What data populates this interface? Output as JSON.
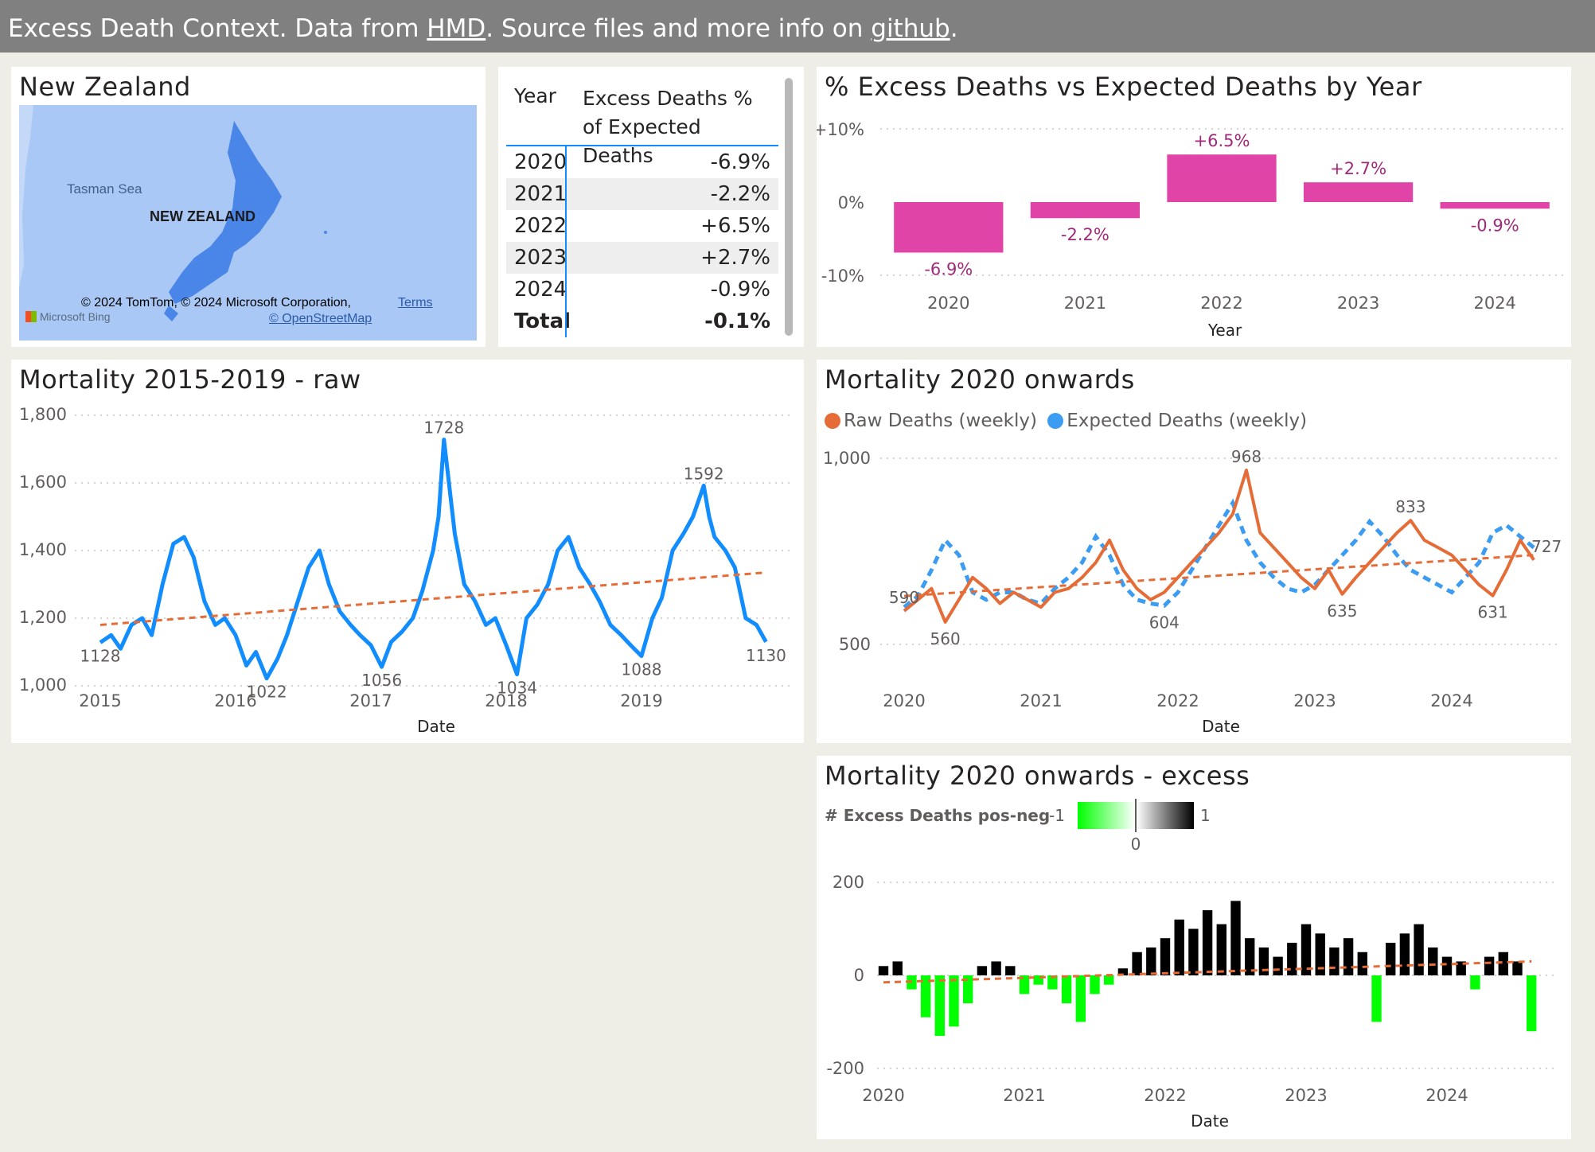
{
  "header": {
    "prefix": "Excess Death Context. Data from ",
    "hmd_link": "HMD",
    "middle": ". Source files and more info on ",
    "github_link": "github",
    "suffix": "."
  },
  "map_card": {
    "title": "New Zealand",
    "labels": {
      "sea": "Tasman Sea",
      "country": "NEW ZEALAND",
      "attribution": "© 2024 TomTom, © 2024 Microsoft Corporation,",
      "terms": "Terms",
      "osm": "© OpenStreetMap",
      "bing": "Microsoft Bing"
    },
    "colors": {
      "water": "#a9c8f5",
      "land": "#4a86e8"
    }
  },
  "table_card": {
    "col_year": "Year",
    "col_value": "Excess Deaths % of Expected Deaths",
    "rows": [
      {
        "year": "2020",
        "value": "-6.9%"
      },
      {
        "year": "2021",
        "value": "-2.2%"
      },
      {
        "year": "2022",
        "value": "+6.5%"
      },
      {
        "year": "2023",
        "value": "+2.7%"
      },
      {
        "year": "2024",
        "value": "-0.9%"
      }
    ],
    "total_label": "Total",
    "total_value": "-0.1%"
  },
  "bar_card": {
    "title": "% Excess Deaths vs Expected Deaths by Year",
    "y_ticks": [
      "+10%",
      "0%",
      "-10%"
    ],
    "x_label": "Year",
    "bar_labels": [
      "-6.9%",
      "-2.2%",
      "+6.5%",
      "+2.7%",
      "-0.9%"
    ]
  },
  "raw_card": {
    "title": "Mortality 2015-2019 - raw",
    "y_ticks": [
      "1,800",
      "1,600",
      "1,400",
      "1,200",
      "1,000"
    ],
    "x_ticks": [
      "2015",
      "2016",
      "2017",
      "2018",
      "2019"
    ],
    "x_label": "Date",
    "point_labels": [
      "1128",
      "1022",
      "1056",
      "1728",
      "1034",
      "1088",
      "1592",
      "1130"
    ]
  },
  "onwards_card": {
    "title": "Mortality 2020 onwards",
    "legend": [
      "Raw Deaths (weekly)",
      "Expected Deaths (weekly)"
    ],
    "y_ticks": [
      "1,000",
      "500"
    ],
    "x_ticks": [
      "2020",
      "2021",
      "2022",
      "2023",
      "2024"
    ],
    "x_label": "Date",
    "point_labels": [
      "590",
      "560",
      "604",
      "968",
      "635",
      "833",
      "631",
      "727"
    ]
  },
  "excess_card": {
    "title": "Mortality 2020 onwards - excess",
    "legend_label": "# Excess Deaths pos-neg",
    "gradient_min": "-1",
    "gradient_mid": "0",
    "gradient_max": "1",
    "y_ticks": [
      "200",
      "0",
      "-200"
    ],
    "x_ticks": [
      "2020",
      "2021",
      "2022",
      "2023",
      "2024"
    ],
    "x_label": "Date"
  },
  "chart_data": [
    {
      "type": "bar",
      "title": "% Excess Deaths vs Expected Deaths by Year",
      "categories": [
        "2020",
        "2021",
        "2022",
        "2023",
        "2024"
      ],
      "values": [
        -6.9,
        -2.2,
        6.5,
        2.7,
        -0.9
      ],
      "xlabel": "Year",
      "ylabel": "",
      "ylim": [
        -10,
        10
      ],
      "color": "#e044a7"
    },
    {
      "type": "line",
      "title": "Mortality 2015-2019 - raw",
      "xlabel": "Date",
      "ylabel": "",
      "ylim": [
        1000,
        1800
      ],
      "xlim": [
        2015,
        2020
      ],
      "grid": true,
      "series": [
        {
          "color": "#118dff",
          "x": [
            2015.0,
            2015.08,
            2015.15,
            2015.23,
            2015.31,
            2015.38,
            2015.46,
            2015.54,
            2015.62,
            2015.69,
            2015.77,
            2015.85,
            2015.92,
            2016.0,
            2016.08,
            2016.15,
            2016.23,
            2016.31,
            2016.38,
            2016.46,
            2016.54,
            2016.62,
            2016.69,
            2016.77,
            2016.85,
            2016.92,
            2017.0,
            2017.08,
            2017.15,
            2017.23,
            2017.31,
            2017.38,
            2017.46,
            2017.5,
            2017.54,
            2017.62,
            2017.69,
            2017.77,
            2017.85,
            2017.92,
            2018.0,
            2018.08,
            2018.15,
            2018.23,
            2018.31,
            2018.38,
            2018.46,
            2018.54,
            2018.62,
            2018.69,
            2018.77,
            2018.85,
            2018.92,
            2019.0,
            2019.08,
            2019.15,
            2019.23,
            2019.31,
            2019.38,
            2019.46,
            2019.5,
            2019.54,
            2019.62,
            2019.69,
            2019.77,
            2019.85,
            2019.92
          ],
          "values": [
            1128,
            1150,
            1110,
            1180,
            1200,
            1150,
            1300,
            1420,
            1440,
            1380,
            1250,
            1180,
            1200,
            1150,
            1060,
            1100,
            1022,
            1080,
            1150,
            1250,
            1350,
            1400,
            1300,
            1220,
            1180,
            1150,
            1120,
            1056,
            1130,
            1160,
            1200,
            1280,
            1400,
            1500,
            1728,
            1450,
            1300,
            1250,
            1180,
            1200,
            1120,
            1034,
            1200,
            1240,
            1300,
            1400,
            1440,
            1350,
            1300,
            1250,
            1180,
            1150,
            1120,
            1088,
            1200,
            1260,
            1400,
            1450,
            1500,
            1592,
            1500,
            1440,
            1400,
            1350,
            1200,
            1180,
            1130
          ]
        }
      ],
      "trend": {
        "color": "#e66c37",
        "values": [
          1180,
          1335
        ]
      },
      "point_labels": [
        {
          "x": 2015.0,
          "y": 1128
        },
        {
          "x": 2016.23,
          "y": 1022
        },
        {
          "x": 2017.08,
          "y": 1056
        },
        {
          "x": 2017.54,
          "y": 1728
        },
        {
          "x": 2018.08,
          "y": 1034
        },
        {
          "x": 2019.0,
          "y": 1088
        },
        {
          "x": 2019.46,
          "y": 1592
        },
        {
          "x": 2019.92,
          "y": 1130
        }
      ]
    },
    {
      "type": "line",
      "title": "Mortality 2020 onwards",
      "xlabel": "Date",
      "ylabel": "",
      "ylim": [
        500,
        1000
      ],
      "xlim": [
        2020,
        2025
      ],
      "grid": true,
      "series": [
        {
          "name": "Raw Deaths (weekly)",
          "color": "#e66c37",
          "x": [
            2020.0,
            2020.1,
            2020.2,
            2020.3,
            2020.4,
            2020.5,
            2020.6,
            2020.7,
            2020.8,
            2020.9,
            2021.0,
            2021.1,
            2021.2,
            2021.3,
            2021.4,
            2021.5,
            2021.6,
            2021.7,
            2021.8,
            2021.9,
            2022.0,
            2022.1,
            2022.2,
            2022.3,
            2022.4,
            2022.5,
            2022.6,
            2022.7,
            2022.8,
            2022.9,
            2023.0,
            2023.1,
            2023.2,
            2023.3,
            2023.4,
            2023.5,
            2023.6,
            2023.7,
            2023.8,
            2023.9,
            2024.0,
            2024.1,
            2024.2,
            2024.3,
            2024.4,
            2024.5,
            2024.6
          ],
          "values": [
            590,
            620,
            650,
            560,
            620,
            680,
            650,
            610,
            640,
            620,
            600,
            640,
            650,
            680,
            720,
            780,
            700,
            650,
            620,
            640,
            680,
            720,
            760,
            800,
            850,
            968,
            800,
            760,
            720,
            680,
            650,
            700,
            635,
            680,
            720,
            760,
            800,
            833,
            780,
            760,
            740,
            700,
            660,
            631,
            700,
            780,
            727
          ]
        },
        {
          "name": "Expected Deaths (weekly)",
          "color": "#3b9cf1",
          "x": [
            2020.0,
            2020.1,
            2020.2,
            2020.3,
            2020.4,
            2020.5,
            2020.6,
            2020.7,
            2020.8,
            2020.9,
            2021.0,
            2021.1,
            2021.2,
            2021.3,
            2021.4,
            2021.5,
            2021.6,
            2021.7,
            2021.8,
            2021.9,
            2022.0,
            2022.1,
            2022.2,
            2022.3,
            2022.4,
            2022.5,
            2022.6,
            2022.7,
            2022.8,
            2022.9,
            2023.0,
            2023.1,
            2023.2,
            2023.3,
            2023.4,
            2023.5,
            2023.6,
            2023.7,
            2023.8,
            2023.9,
            2024.0,
            2024.1,
            2024.2,
            2024.3,
            2024.4,
            2024.5,
            2024.6
          ],
          "values": [
            600,
            630,
            700,
            780,
            740,
            640,
            620,
            640,
            640,
            620,
            610,
            650,
            680,
            720,
            790,
            740,
            660,
            620,
            610,
            604,
            640,
            700,
            760,
            820,
            880,
            780,
            720,
            680,
            650,
            640,
            660,
            700,
            740,
            780,
            830,
            790,
            740,
            700,
            680,
            660,
            640,
            680,
            720,
            800,
            820,
            790,
            760
          ]
        }
      ],
      "trend": {
        "color": "#e66c37",
        "values": [
          630,
          740
        ]
      },
      "point_labels": [
        {
          "x": 2020.0,
          "y": 590
        },
        {
          "x": 2020.3,
          "y": 560
        },
        {
          "x": 2021.9,
          "y": 604
        },
        {
          "x": 2022.5,
          "y": 968
        },
        {
          "x": 2023.2,
          "y": 635
        },
        {
          "x": 2023.7,
          "y": 833
        },
        {
          "x": 2024.3,
          "y": 631
        },
        {
          "x": 2024.6,
          "y": 727
        }
      ]
    },
    {
      "type": "bar",
      "title": "Mortality 2020 onwards - excess",
      "xlabel": "Date",
      "ylabel": "",
      "ylim": [
        -200,
        200
      ],
      "xlim": [
        2020,
        2025
      ],
      "series": [
        {
          "name": "# Excess Deaths pos-neg",
          "x": [
            2020.0,
            2020.1,
            2020.2,
            2020.3,
            2020.4,
            2020.5,
            2020.6,
            2020.7,
            2020.8,
            2020.9,
            2021.0,
            2021.1,
            2021.2,
            2021.3,
            2021.4,
            2021.5,
            2021.6,
            2021.7,
            2021.8,
            2021.9,
            2022.0,
            2022.1,
            2022.2,
            2022.3,
            2022.4,
            2022.5,
            2022.6,
            2022.7,
            2022.8,
            2022.9,
            2023.0,
            2023.1,
            2023.2,
            2023.3,
            2023.4,
            2023.5,
            2023.6,
            2023.7,
            2023.8,
            2023.9,
            2024.0,
            2024.1,
            2024.2,
            2024.3,
            2024.4,
            2024.5,
            2024.6
          ],
          "values": [
            20,
            30,
            -30,
            -90,
            -130,
            -110,
            -60,
            20,
            30,
            20,
            -40,
            -20,
            -30,
            -60,
            -100,
            -40,
            -20,
            15,
            50,
            60,
            80,
            120,
            100,
            140,
            110,
            160,
            80,
            60,
            40,
            70,
            110,
            90,
            60,
            80,
            50,
            -100,
            70,
            90,
            110,
            60,
            40,
            30,
            -30,
            40,
            50,
            30,
            -120
          ]
        }
      ],
      "trend": {
        "color": "#e66c37",
        "values": [
          -15,
          30
        ]
      },
      "colors": {
        "positive": "#000000",
        "negative": "#00ff00"
      }
    }
  ]
}
